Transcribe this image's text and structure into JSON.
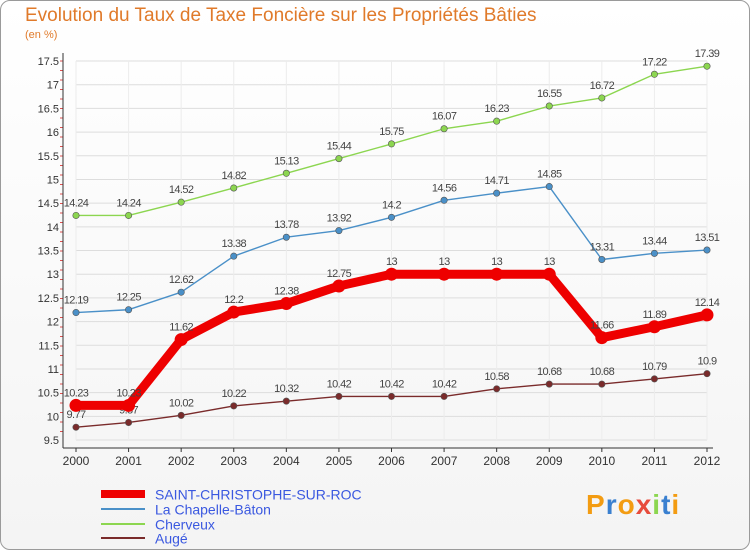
{
  "title": "Evolution du Taux de Taxe Foncière sur les Propriétés Bâties",
  "unit_label": "(en %)",
  "brand": "Proxiti",
  "colors": {
    "title": "#e07a2a",
    "legend_text": "#3a58e0",
    "grid": "#dddddd",
    "axis": "#333333"
  },
  "chart_data": {
    "type": "line",
    "x": [
      "2000",
      "2001",
      "2002",
      "2003",
      "2004",
      "2005",
      "2006",
      "2007",
      "2008",
      "2009",
      "2010",
      "2011",
      "2012"
    ],
    "ylim": [
      9.5,
      17.5
    ],
    "yticks": [
      "9.5",
      "10",
      "10.5",
      "11",
      "11.5",
      "12",
      "12.5",
      "13",
      "13.5",
      "14",
      "14.5",
      "15",
      "15.5",
      "16",
      "16.5",
      "17",
      "17.5"
    ],
    "series": [
      {
        "name": "SAINT-CHRISTOPHE-SUR-ROC",
        "color": "#ee0000",
        "thick": true,
        "values": [
          10.23,
          10.23,
          11.62,
          12.2,
          12.38,
          12.75,
          13,
          13,
          13,
          13,
          11.66,
          11.89,
          12.14
        ],
        "labels": [
          "10.23",
          "10.23",
          "11.62",
          "12.2",
          "12.38",
          "12.75",
          "13",
          "13",
          "13",
          "13",
          "11.66",
          "11.89",
          "12.14"
        ]
      },
      {
        "name": "La Chapelle-Bâton",
        "color": "#4a90c8",
        "thick": false,
        "values": [
          12.19,
          12.25,
          12.62,
          13.38,
          13.78,
          13.92,
          14.2,
          14.56,
          14.71,
          14.85,
          13.31,
          13.44,
          13.51
        ],
        "labels": [
          "12.19",
          "12.25",
          "12.62",
          "13.38",
          "13.78",
          "13.92",
          "14.2",
          "14.56",
          "14.71",
          "14.85",
          "13.31",
          "13.44",
          "13.51"
        ]
      },
      {
        "name": "Cherveux",
        "color": "#8cd650",
        "thick": false,
        "values": [
          14.24,
          14.24,
          14.52,
          14.82,
          15.13,
          15.44,
          15.75,
          16.07,
          16.23,
          16.55,
          16.72,
          17.22,
          17.39
        ],
        "labels": [
          "14.24",
          "14.24",
          "14.52",
          "14.82",
          "15.13",
          "15.44",
          "15.75",
          "16.07",
          "16.23",
          "16.55",
          "16.72",
          "17.22",
          "17.39"
        ]
      },
      {
        "name": "Augé",
        "color": "#7a2b2b",
        "thick": false,
        "values": [
          9.77,
          9.87,
          10.02,
          10.22,
          10.32,
          10.42,
          10.42,
          10.42,
          10.58,
          10.68,
          10.68,
          10.79,
          10.9
        ],
        "labels": [
          "9.77",
          "9.87",
          "10.02",
          "10.22",
          "10.32",
          "10.42",
          "10.42",
          "10.42",
          "10.58",
          "10.68",
          "10.68",
          "10.79",
          "10.9"
        ]
      }
    ]
  }
}
